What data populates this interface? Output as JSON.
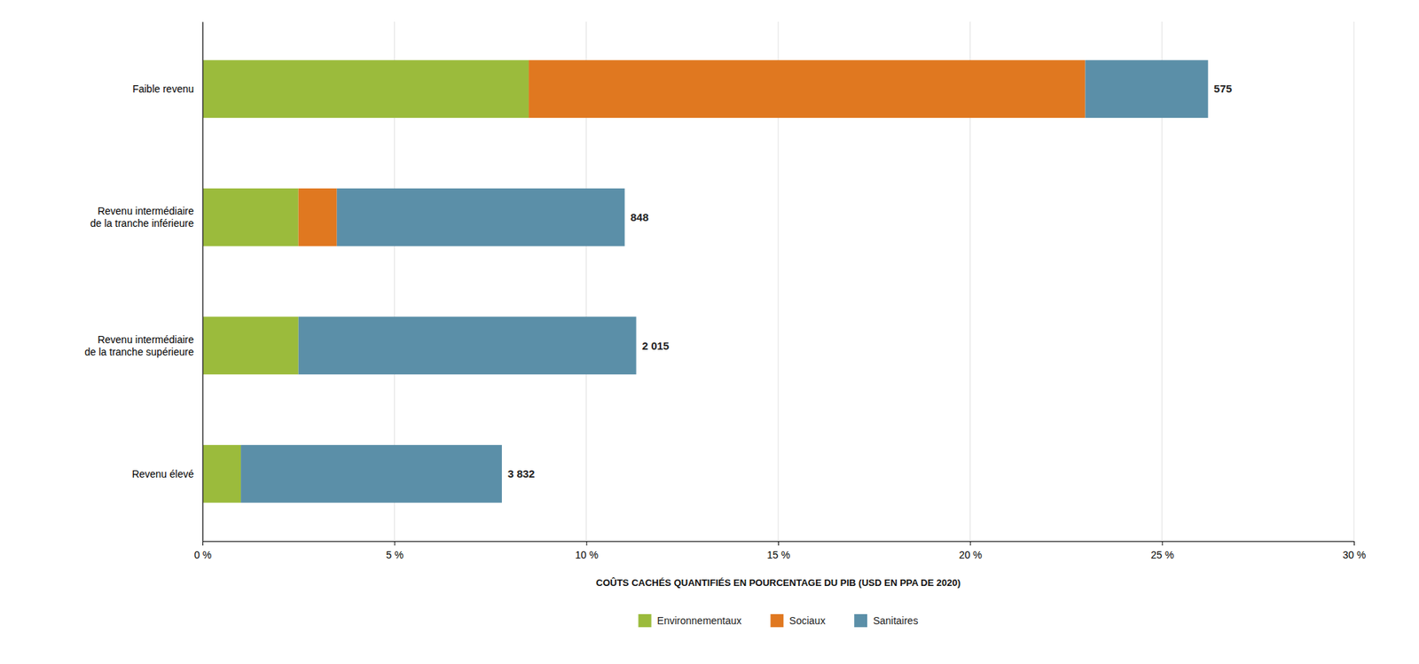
{
  "chart_data": {
    "type": "bar",
    "orientation": "horizontal",
    "stacked": true,
    "categories": [
      "Faible revenu",
      "Revenu intermédiaire\nde la tranche inférieure",
      "Revenu intermédiaire\nde la tranche supérieure",
      "Revenu élevé"
    ],
    "series": [
      {
        "name": "Environnementaux",
        "color": "#9BBB3C",
        "values": [
          8.5,
          2.5,
          2.5,
          1.0
        ]
      },
      {
        "name": "Sociaux",
        "color": "#E07820",
        "values": [
          14.5,
          1.0,
          0.0,
          0.0
        ]
      },
      {
        "name": "Sanitaires",
        "color": "#5B8FA8",
        "values": [
          3.2,
          7.5,
          8.8,
          6.8
        ]
      }
    ],
    "annotations": [
      "575",
      "848",
      "2 015",
      "3 832"
    ],
    "xlabel": "COÛTS CACHÉS QUANTIFIÉS EN POURCENTAGE DU PIB (USD EN PPA DE 2020)",
    "xlim": [
      0,
      30
    ],
    "xticks": [
      {
        "value": 0,
        "label": "0 %"
      },
      {
        "value": 5,
        "label": "5 %"
      },
      {
        "value": 10,
        "label": "10 %"
      },
      {
        "value": 15,
        "label": "15 %"
      },
      {
        "value": 20,
        "label": "20 %"
      },
      {
        "value": 25,
        "label": "25 %"
      },
      {
        "value": 30,
        "label": "30 %"
      }
    ],
    "grid": true,
    "legend": "bottom"
  }
}
